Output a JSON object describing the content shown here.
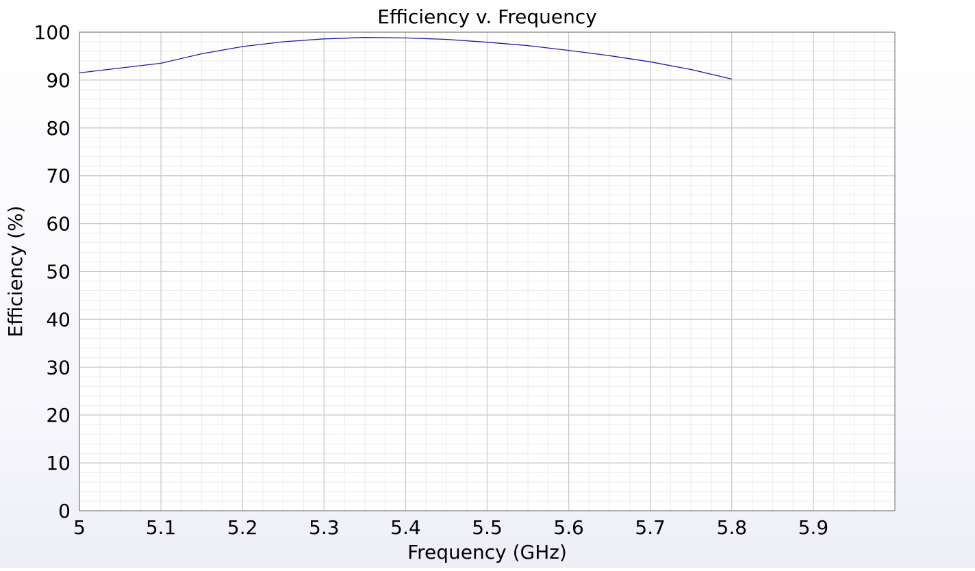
{
  "chart_data": {
    "type": "line",
    "title": "Efficiency v. Frequency",
    "xlabel": "Frequency (GHz)",
    "ylabel": "Efficiency (%)",
    "xlim": [
      5.0,
      6.0
    ],
    "ylim": [
      0,
      100
    ],
    "x_ticks": [
      "5",
      "5.1",
      "5.2",
      "5.3",
      "5.4",
      "5.5",
      "5.6",
      "5.7",
      "5.8",
      "5.9"
    ],
    "x_tick_values": [
      5.0,
      5.1,
      5.2,
      5.3,
      5.4,
      5.5,
      5.6,
      5.7,
      5.8,
      5.9
    ],
    "y_ticks": [
      "0",
      "10",
      "20",
      "30",
      "40",
      "50",
      "60",
      "70",
      "80",
      "90",
      "100"
    ],
    "y_tick_values": [
      0,
      10,
      20,
      30,
      40,
      50,
      60,
      70,
      80,
      90,
      100
    ],
    "grid": true,
    "minor_grid": true,
    "line_color": "#1a1aa6",
    "series": [
      {
        "x": [
          5.0,
          5.05,
          5.1,
          5.15,
          5.2,
          5.25,
          5.3,
          5.35,
          5.4,
          5.45,
          5.5,
          5.55,
          5.6,
          5.65,
          5.7,
          5.75,
          5.8
        ],
        "y": [
          91.5,
          92.5,
          93.5,
          95.5,
          97.0,
          98.0,
          98.6,
          98.9,
          98.8,
          98.5,
          97.9,
          97.2,
          96.2,
          95.1,
          93.8,
          92.2,
          90.2
        ]
      }
    ]
  }
}
